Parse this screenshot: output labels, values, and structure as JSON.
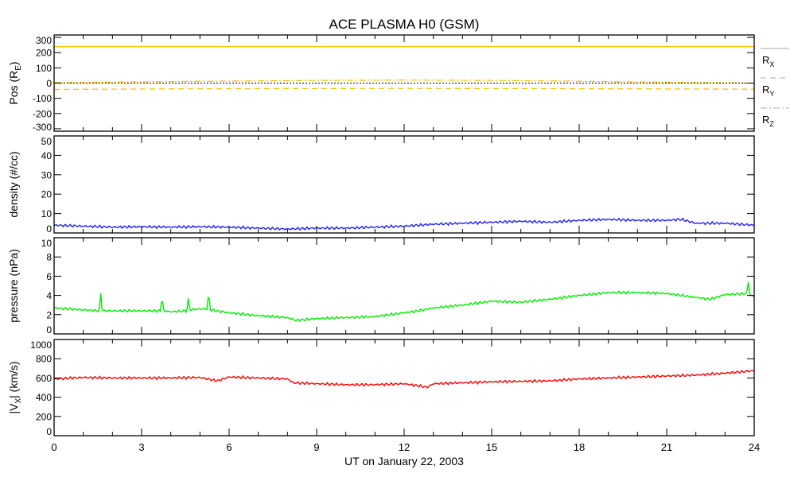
{
  "chart_data": {
    "type": "line",
    "title": "ACE PLASMA H0 (GSM)",
    "xlabel": "UT on January 22, 2003",
    "xlim": [
      0,
      24
    ],
    "xticks": [
      "0",
      "3",
      "6",
      "9",
      "12",
      "15",
      "18",
      "21",
      "24"
    ],
    "panels": [
      {
        "id": "pos",
        "ylabel": "Pos (R",
        "ylabel_sub": "E",
        "ylabel_end": ")",
        "ylim": [
          -316,
          316
        ],
        "yticks": [
          300,
          200,
          100,
          0,
          -100,
          -200,
          -300
        ],
        "zero_line": true,
        "legend": [
          {
            "label": "R",
            "sub": "X",
            "style": "solid"
          },
          {
            "label": "R",
            "sub": "Y",
            "style": "dashed"
          },
          {
            "label": "R",
            "sub": "Z",
            "style": "dashdot"
          }
        ],
        "series": [
          {
            "name": "Rx",
            "color": "#ffc000",
            "style": "solid",
            "x": [
              0,
              24
            ],
            "y": [
              240,
              240
            ]
          },
          {
            "name": "Ry",
            "color": "#ffc000",
            "style": "dashed",
            "x": [
              0,
              4,
              8,
              12,
              16,
              20,
              24
            ],
            "y": [
              -42,
              -38,
              -36,
              -35,
              -36,
              -38,
              -40
            ]
          },
          {
            "name": "Rz",
            "color": "#ffc000",
            "style": "dashdot",
            "x": [
              0,
              3,
              6,
              9,
              12,
              15,
              18,
              21,
              24
            ],
            "y": [
              3,
              8,
              13,
              17,
              20,
              18,
              12,
              5,
              0
            ]
          }
        ]
      },
      {
        "id": "density",
        "ylabel": "density (#/cc)",
        "ylim": [
          0,
          50
        ],
        "yticks": [
          50,
          40,
          30,
          20,
          10,
          0
        ],
        "series": [
          {
            "name": "density",
            "color": "#2020ff",
            "x": [
              0,
              1,
              2,
              3,
              4,
              5,
              6,
              7,
              8,
              9,
              10,
              11,
              12,
              13,
              14,
              15,
              16,
              17,
              18,
              19,
              20,
              21,
              21.5,
              22,
              23,
              24
            ],
            "y": [
              4,
              3.5,
              3,
              3.2,
              3,
              3.2,
              3,
              2.5,
              2,
              2.5,
              2.5,
              3,
              3.5,
              4.5,
              5,
              5.5,
              6,
              5.5,
              6.5,
              7,
              6.5,
              6.5,
              7,
              5,
              5,
              4
            ]
          }
        ]
      },
      {
        "id": "pressure",
        "ylabel": "pressure (nPa)",
        "ylim": [
          0,
          10
        ],
        "yticks": [
          10,
          8,
          6,
          4,
          2,
          0
        ],
        "series": [
          {
            "name": "pressure",
            "color": "#00ee00",
            "x": [
              0,
              1,
              1.55,
              1.6,
              1.65,
              2,
              3,
              3.65,
              3.7,
              3.75,
              4,
              4.55,
              4.6,
              4.65,
              5,
              5.25,
              5.3,
              5.35,
              6,
              7,
              8,
              8.3,
              9,
              10,
              11,
              12,
              12.5,
              13,
              14,
              15,
              16,
              17,
              18,
              19,
              20,
              21,
              22,
              22.5,
              23,
              23.75,
              23.8,
              23.85,
              24
            ],
            "y": [
              2.7,
              2.5,
              2.4,
              4.2,
              2.4,
              2.4,
              2.4,
              2.4,
              4.0,
              2.4,
              2.3,
              2.4,
              3.6,
              2.5,
              2.6,
              2.6,
              4.4,
              2.5,
              2.2,
              1.9,
              1.7,
              1.4,
              1.6,
              1.7,
              1.8,
              2.2,
              2.4,
              2.7,
              3.0,
              3.4,
              3.3,
              3.6,
              4.0,
              4.3,
              4.3,
              4.2,
              3.8,
              3.6,
              4.1,
              4.2,
              5.5,
              4.0,
              3.9
            ]
          }
        ]
      },
      {
        "id": "vx",
        "ylabel": "|V",
        "ylabel_sub": "X",
        "ylabel_end": "| (km/s)",
        "ylim": [
          0,
          1000
        ],
        "yticks": [
          1000,
          800,
          600,
          400,
          200,
          0
        ],
        "series": [
          {
            "name": "|Vx|",
            "color": "#ff0000",
            "x": [
              0,
              1,
              2,
              3,
              4,
              5,
              5.6,
              6,
              7,
              8,
              8.2,
              9,
              10,
              11,
              12,
              12.8,
              13,
              14,
              15,
              16,
              17,
              18,
              19,
              20,
              21,
              22,
              23,
              24
            ],
            "y": [
              590,
              605,
              600,
              600,
              600,
              605,
              570,
              610,
              600,
              590,
              550,
              540,
              530,
              530,
              540,
              505,
              540,
              550,
              560,
              565,
              570,
              590,
              600,
              610,
              620,
              630,
              650,
              675
            ]
          }
        ]
      }
    ]
  }
}
